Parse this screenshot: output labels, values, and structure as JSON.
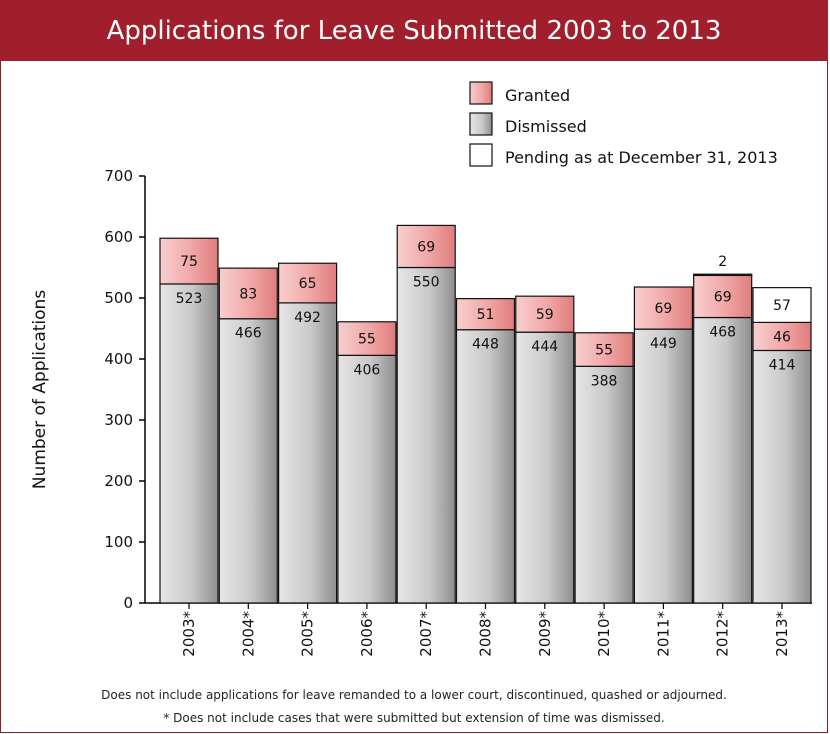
{
  "chart_data": {
    "type": "bar",
    "stacked": true,
    "title": "Applications for Leave Submitted 2003 to 2013",
    "ylabel": "Number of Applications",
    "ylim": [
      0,
      700
    ],
    "yticks": [
      0,
      100,
      200,
      300,
      400,
      500,
      600,
      700
    ],
    "categories": [
      "2003*",
      "2004*",
      "2005*",
      "2006*",
      "2007*",
      "2008*",
      "2009*",
      "2010*",
      "2011*",
      "2012*",
      "2013*"
    ],
    "series": [
      {
        "name": "Dismissed",
        "values": [
          523,
          466,
          492,
          406,
          550,
          448,
          444,
          388,
          449,
          468,
          414
        ]
      },
      {
        "name": "Granted",
        "values": [
          75,
          83,
          65,
          55,
          69,
          51,
          59,
          55,
          69,
          69,
          46
        ]
      },
      {
        "name": "Pending as at December 31, 2013",
        "values": [
          0,
          0,
          0,
          0,
          0,
          0,
          0,
          0,
          0,
          2,
          57
        ]
      }
    ],
    "legend_position": "top-right",
    "colors": {
      "Dismissed": "#c8c8c8",
      "Granted": "#f2a5a5",
      "Pending as at December 31, 2013": "#ffffff",
      "title_bar": "#a11f2c"
    }
  },
  "notes": {
    "line1": "Does not include applications for leave remanded to a lower court, discontinued, quashed or adjourned.",
    "line2": "* Does not include cases that were submitted but extension of time was dismissed."
  }
}
